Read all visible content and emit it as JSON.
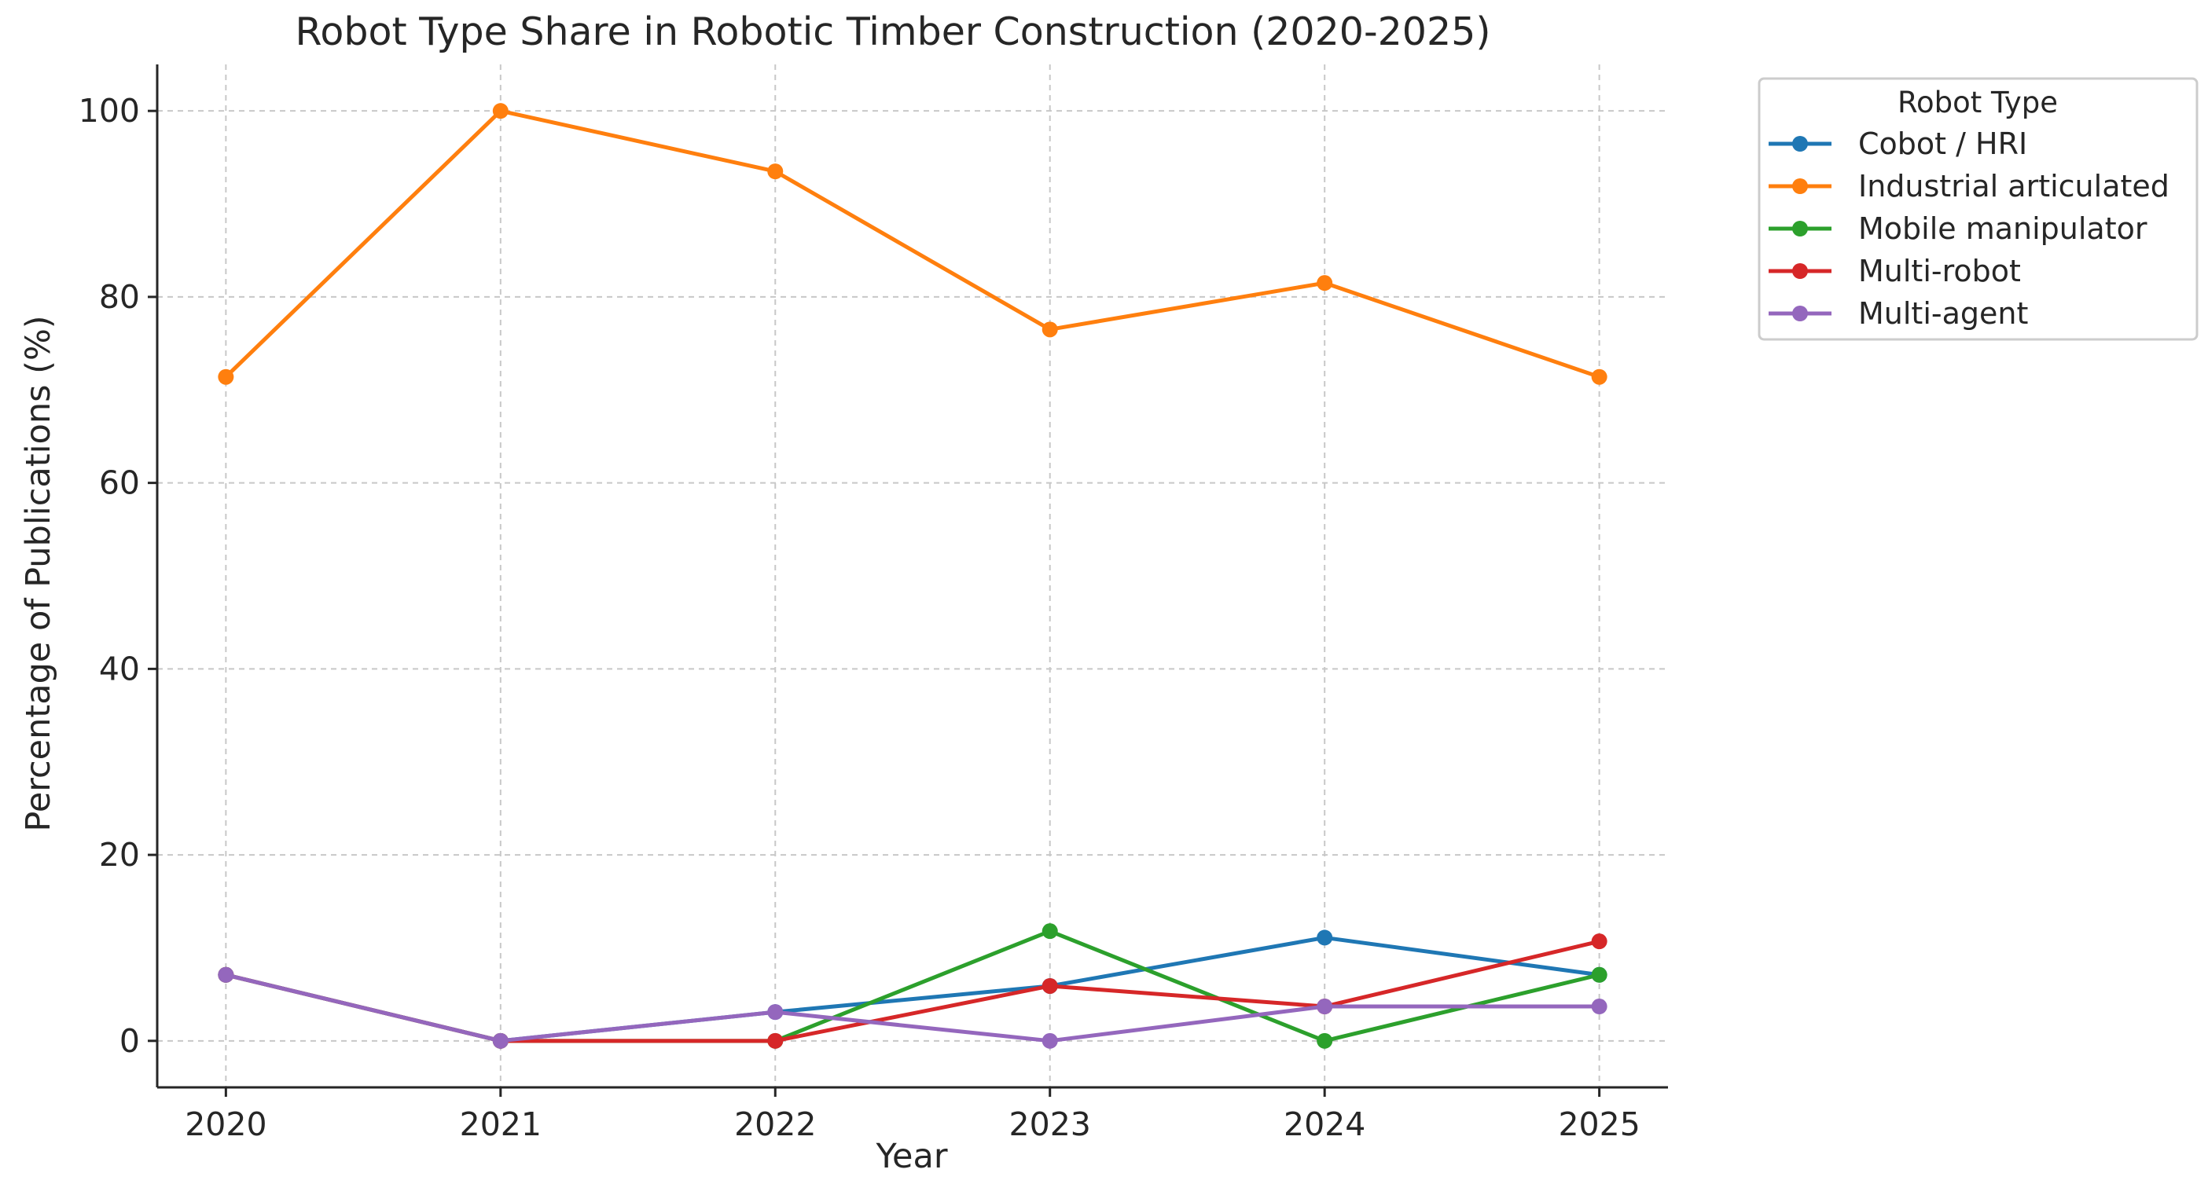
{
  "chart_data": {
    "type": "line",
    "title": "Robot Type Share in Robotic Timber Construction (2020-2025)",
    "xlabel": "Year",
    "ylabel": "Percentage of Publications (%)",
    "x": [
      2020,
      2021,
      2022,
      2023,
      2024,
      2025
    ],
    "x_tick_labels": [
      "2020",
      "2021",
      "2022",
      "2023",
      "2024",
      "2025"
    ],
    "y_ticks": [
      0,
      20,
      40,
      60,
      80,
      100
    ],
    "y_tick_labels": [
      "0",
      "20",
      "40",
      "60",
      "80",
      "100"
    ],
    "xlim": [
      2019.75,
      2025.25
    ],
    "ylim": [
      -5,
      105
    ],
    "grid": true,
    "legend": {
      "title": "Robot Type",
      "placement": "outside-top-right"
    },
    "series": [
      {
        "name": "Cobot / HRI",
        "color": "#1f77b4",
        "values": [
          7.1,
          0,
          3.1,
          5.9,
          11.1,
          7.1
        ]
      },
      {
        "name": "Industrial articulated",
        "color": "#ff7f0e",
        "values": [
          71.4,
          100,
          93.5,
          76.5,
          81.5,
          71.4
        ]
      },
      {
        "name": "Mobile manipulator",
        "color": "#2ca02c",
        "values": [
          7.1,
          0,
          0,
          11.8,
          0,
          7.1
        ]
      },
      {
        "name": "Multi-robot",
        "color": "#d62728",
        "values": [
          7.1,
          0,
          0,
          5.9,
          3.7,
          10.7
        ]
      },
      {
        "name": "Multi-agent",
        "color": "#9467bd",
        "values": [
          7.1,
          0,
          3.1,
          0,
          3.7,
          3.7
        ]
      }
    ]
  }
}
